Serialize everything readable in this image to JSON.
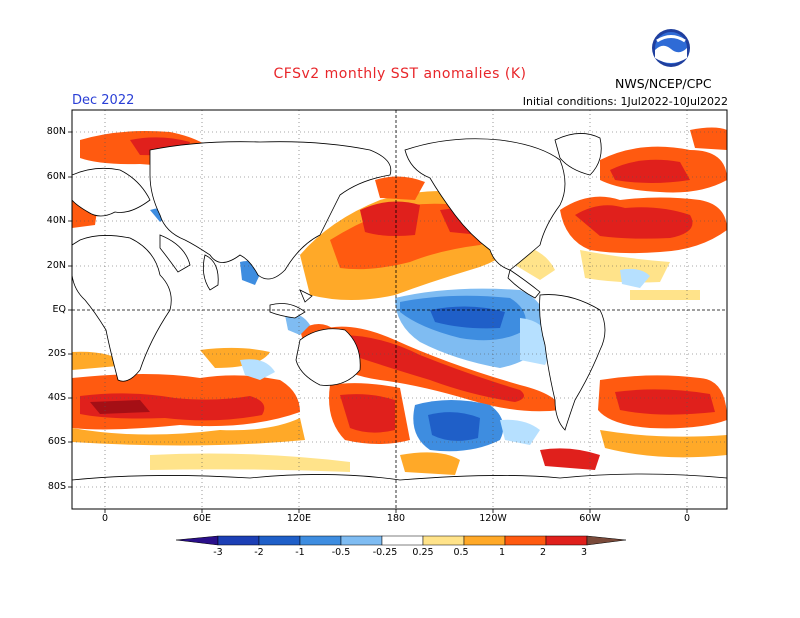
{
  "title": "CFSv2 monthly SST anomalies (K)",
  "forecast_month": "Dec 2022",
  "initial_conditions": "Initial conditions: 1Jul2022-10Jul2022",
  "agency": "NWS/NCEP/CPC",
  "logo": {
    "icon": "noaa-logo-icon",
    "text": "NOAA"
  },
  "colors": {
    "ocean_neutral": "#ffffff",
    "land_outline": "#000000",
    "warm_light": "#ffe38a",
    "warm_mid": "#ffa928",
    "warm": "#ff5a10",
    "warm_strong": "#e0201c",
    "warm_extreme": "#a50f15",
    "cool_light": "#b6e0ff",
    "cool_mid": "#66b1f2",
    "cool": "#3e8de0",
    "cool_strong": "#1f5fc8"
  },
  "map": {
    "projection": "cylindrical equidistant, Pacific-centered",
    "lat_labels": [
      "80N",
      "60N",
      "40N",
      "20N",
      "EQ",
      "20S",
      "40S",
      "60S",
      "80S"
    ],
    "lon_labels": [
      "0",
      "60E",
      "120E",
      "180",
      "120W",
      "60W",
      "0"
    ]
  },
  "colorbar": {
    "labels": [
      "-3",
      "-2",
      "-1",
      "-0.5",
      "-0.25",
      "0.25",
      "0.5",
      "1",
      "2",
      "3"
    ],
    "bins": [
      {
        "range": "< -3",
        "color": "#2a0f8a"
      },
      {
        "range": "-3 to -2",
        "color": "#1c3fb5"
      },
      {
        "range": "-2 to -1",
        "color": "#1f5fc8"
      },
      {
        "range": "-1 to -0.5",
        "color": "#3e8de0"
      },
      {
        "range": "-0.5 to -0.25",
        "color": "#7fbcf2"
      },
      {
        "range": "-0.25 to -0.25",
        "color": "#b6e0ff"
      },
      {
        "range": "-0.25 to 0.25",
        "color": "#ffffff"
      },
      {
        "range": "0.25 to 0.5",
        "color": "#ffe38a"
      },
      {
        "range": "0.5 to 1",
        "color": "#ffa928"
      },
      {
        "range": "1 to 2",
        "color": "#ff5a10"
      },
      {
        "range": "2 to 3",
        "color": "#e0201c"
      },
      {
        "range": "3+",
        "color": "#a50f15"
      },
      {
        "range": ">>3",
        "color": "#7a4a3a"
      }
    ]
  }
}
